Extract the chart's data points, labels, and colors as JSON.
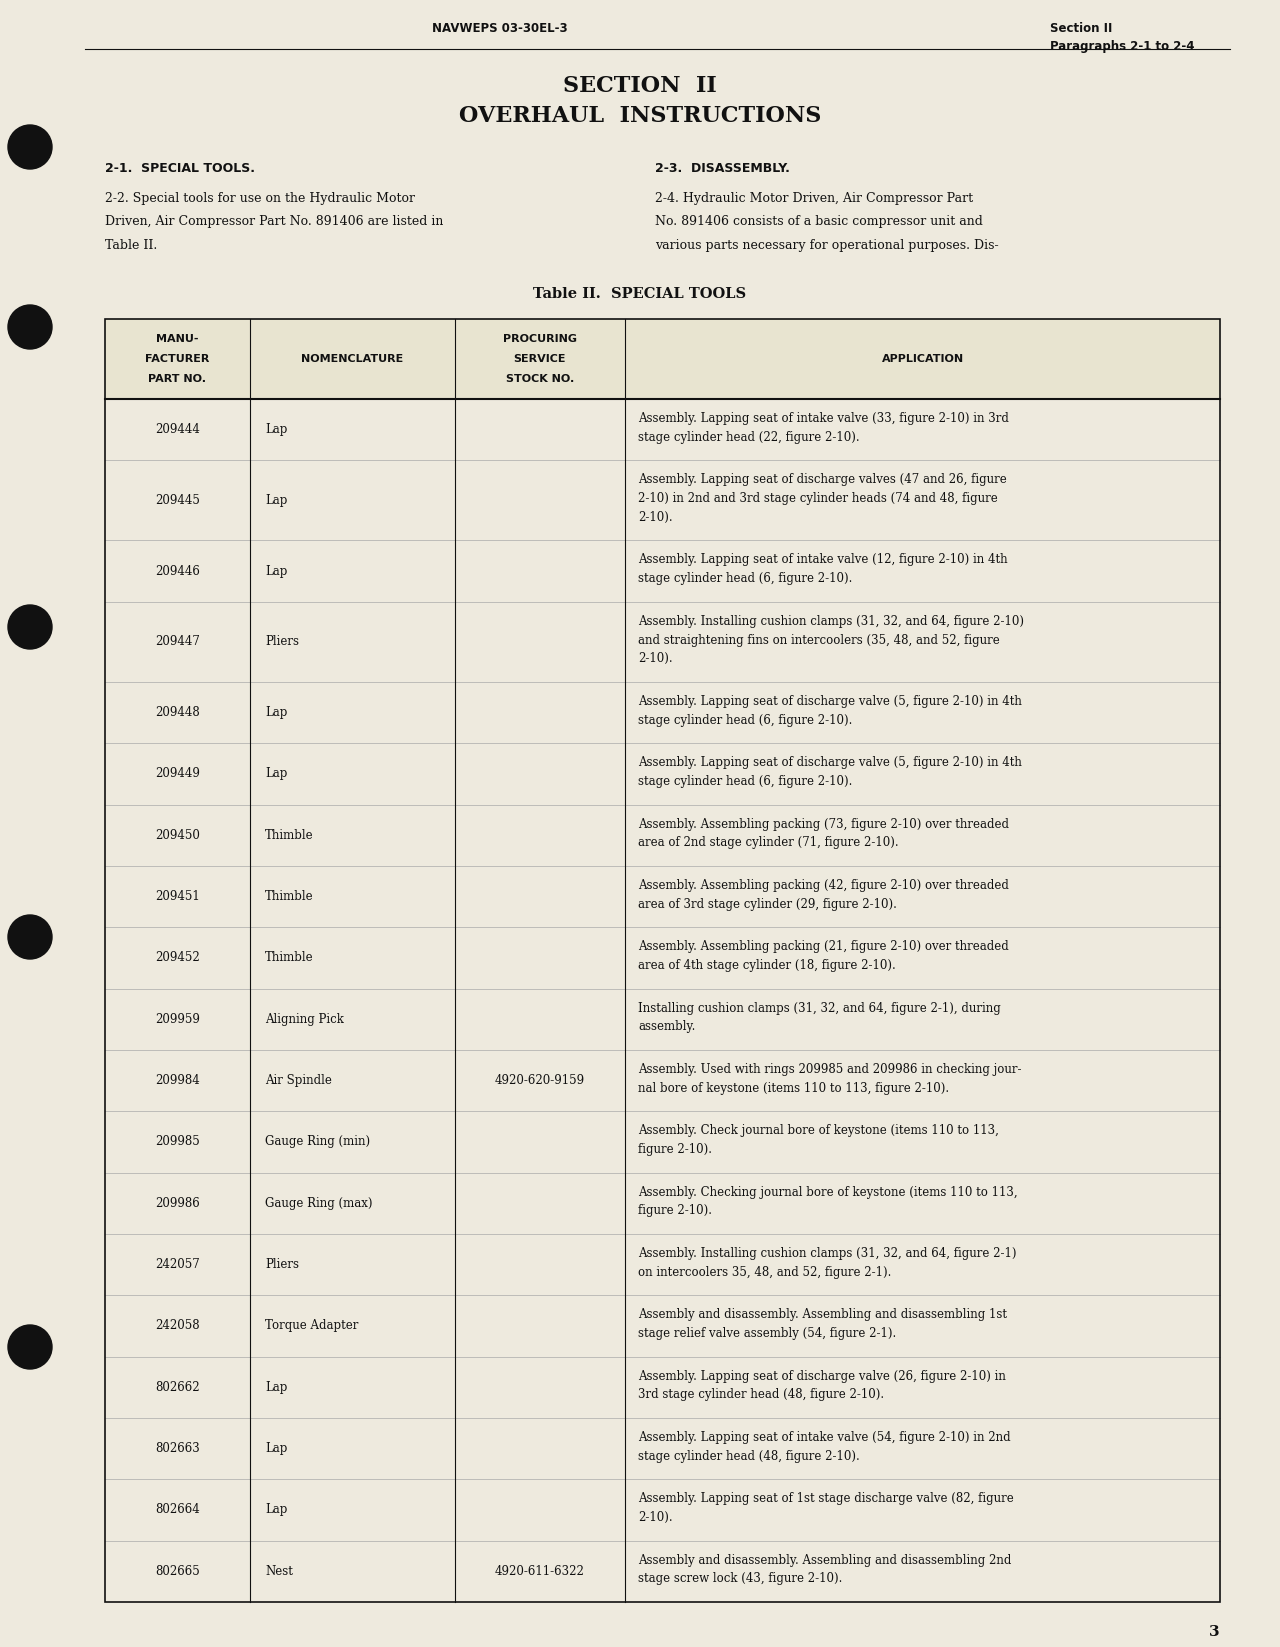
{
  "bg_color": "#eeeade",
  "text_color": "#111111",
  "header_left": "NAVWEPS 03-30EL-3",
  "header_right_line1": "Section II",
  "header_right_line2": "Paragraphs 2-1 to 2-4",
  "section_title": "SECTION  II",
  "section_subtitle": "OVERHAUL  INSTRUCTIONS",
  "table_title": "Table II.  SPECIAL TOOLS",
  "para21_title": "2-1.  SPECIAL TOOLS.",
  "para21_body_lines": [
    "2-2. Special tools for use on the Hydraulic Motor",
    "Driven, Air Compressor Part No. 891406 are listed in",
    "Table II."
  ],
  "para23_title": "2-3.  DISASSEMBLY.",
  "para23_body_lines": [
    "2-4. Hydraulic Motor Driven, Air Compressor Part",
    "No. 891406 consists of a basic compressor unit and",
    "various parts necessary for operational purposes. Dis-"
  ],
  "page_number": "3",
  "col_headers": [
    [
      "MANU-",
      "FACTURER",
      "PART NO."
    ],
    [
      "NOMENCLATURE"
    ],
    [
      "PROCURING",
      "SERVICE",
      "STOCK NO."
    ],
    [
      "APPLICATION"
    ]
  ],
  "table_rows": [
    {
      "part_no": "209444",
      "nomenclature": "Lap",
      "stock_no": "",
      "application": [
        "Assembly. Lapping seat of intake valve (33, figure 2-10) in 3rd",
        "stage cylinder head (22, figure 2-10)."
      ]
    },
    {
      "part_no": "209445",
      "nomenclature": "Lap",
      "stock_no": "",
      "application": [
        "Assembly. Lapping seat of discharge valves (47 and 26, figure",
        "2-10) in 2nd and 3rd stage cylinder heads (74 and 48, figure",
        "2-10)."
      ]
    },
    {
      "part_no": "209446",
      "nomenclature": "Lap",
      "stock_no": "",
      "application": [
        "Assembly. Lapping seat of intake valve (12, figure 2-10) in 4th",
        "stage cylinder head (6, figure 2-10)."
      ]
    },
    {
      "part_no": "209447",
      "nomenclature": "Pliers",
      "stock_no": "",
      "application": [
        "Assembly. Installing cushion clamps (31, 32, and 64, figure 2-10)",
        "and straightening fins on intercoolers (35, 48, and 52, figure",
        "2-10)."
      ]
    },
    {
      "part_no": "209448",
      "nomenclature": "Lap",
      "stock_no": "",
      "application": [
        "Assembly. Lapping seat of discharge valve (5, figure 2-10) in 4th",
        "stage cylinder head (6, figure 2-10)."
      ]
    },
    {
      "part_no": "209449",
      "nomenclature": "Lap",
      "stock_no": "",
      "application": [
        "Assembly. Lapping seat of discharge valve (5, figure 2-10) in 4th",
        "stage cylinder head (6, figure 2-10)."
      ]
    },
    {
      "part_no": "209450",
      "nomenclature": "Thimble",
      "stock_no": "",
      "application": [
        "Assembly. Assembling packing (73, figure 2-10) over threaded",
        "area of 2nd stage cylinder (71, figure 2-10)."
      ]
    },
    {
      "part_no": "209451",
      "nomenclature": "Thimble",
      "stock_no": "",
      "application": [
        "Assembly. Assembling packing (42, figure 2-10) over threaded",
        "area of 3rd stage cylinder (29, figure 2-10)."
      ]
    },
    {
      "part_no": "209452",
      "nomenclature": "Thimble",
      "stock_no": "",
      "application": [
        "Assembly. Assembling packing (21, figure 2-10) over threaded",
        "area of 4th stage cylinder (18, figure 2-10)."
      ]
    },
    {
      "part_no": "209959",
      "nomenclature": "Aligning Pick",
      "stock_no": "",
      "application": [
        "Installing cushion clamps (31, 32, and 64, figure 2-1), during",
        "assembly."
      ]
    },
    {
      "part_no": "209984",
      "nomenclature": "Air Spindle",
      "stock_no": "4920-620-9159",
      "application": [
        "Assembly. Used with rings 209985 and 209986 in checking jour-",
        "nal bore of keystone (items 110 to 113, figure 2-10)."
      ]
    },
    {
      "part_no": "209985",
      "nomenclature": "Gauge Ring (min)",
      "stock_no": "",
      "application": [
        "Assembly. Check journal bore of keystone (items 110 to 113,",
        "figure 2-10)."
      ]
    },
    {
      "part_no": "209986",
      "nomenclature": "Gauge Ring (max)",
      "stock_no": "",
      "application": [
        "Assembly. Checking journal bore of keystone (items 110 to 113,",
        "figure 2-10)."
      ]
    },
    {
      "part_no": "242057",
      "nomenclature": "Pliers",
      "stock_no": "",
      "application": [
        "Assembly. Installing cushion clamps (31, 32, and 64, figure 2-1)",
        "on intercoolers 35, 48, and 52, figure 2-1)."
      ]
    },
    {
      "part_no": "242058",
      "nomenclature": "Torque Adapter",
      "stock_no": "",
      "application": [
        "Assembly and disassembly. Assembling and disassembling 1st",
        "stage relief valve assembly (54, figure 2-1)."
      ]
    },
    {
      "part_no": "802662",
      "nomenclature": "Lap",
      "stock_no": "",
      "application": [
        "Assembly. Lapping seat of discharge valve (26, figure 2-10) in",
        "3rd stage cylinder head (48, figure 2-10)."
      ]
    },
    {
      "part_no": "802663",
      "nomenclature": "Lap",
      "stock_no": "",
      "application": [
        "Assembly. Lapping seat of intake valve (54, figure 2-10) in 2nd",
        "stage cylinder head (48, figure 2-10)."
      ]
    },
    {
      "part_no": "802664",
      "nomenclature": "Lap",
      "stock_no": "",
      "application": [
        "Assembly. Lapping seat of 1st stage discharge valve (82, figure",
        "2-10)."
      ]
    },
    {
      "part_no": "802665",
      "nomenclature": "Nest",
      "stock_no": "4920-611-6322",
      "application": [
        "Assembly and disassembly. Assembling and disassembling 2nd",
        "stage screw lock (43, figure 2-10)."
      ]
    }
  ]
}
